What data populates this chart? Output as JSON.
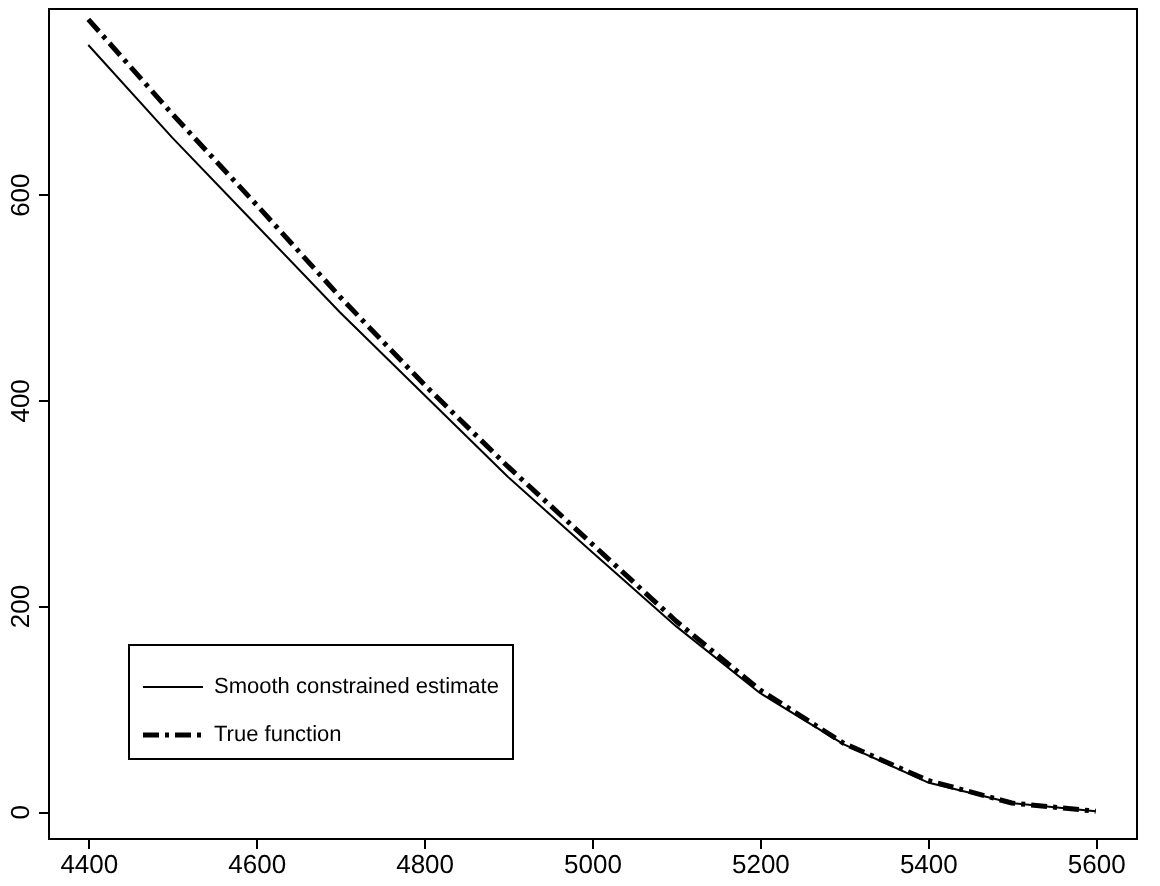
{
  "chart_data": {
    "type": "line",
    "xlim": [
      4352,
      5648
    ],
    "ylim": [
      -26,
      781
    ],
    "xticks": [
      4400,
      4600,
      4800,
      5000,
      5200,
      5400,
      5600
    ],
    "yticks": [
      0,
      200,
      400,
      600
    ],
    "grid": false,
    "legend": "bottom left",
    "marker": "none",
    "series": [
      {
        "name": "Smooth constrained estimate",
        "color": "#000000",
        "line_style": "solid",
        "x": [
          4400,
          4500,
          4600,
          4700,
          4800,
          4900,
          5000,
          5100,
          5200,
          5300,
          5400,
          5500,
          5600
        ],
        "values": [
          745,
          655,
          570,
          485,
          405,
          325,
          252,
          180,
          115,
          65,
          28,
          8,
          0
        ]
      },
      {
        "name": "True function",
        "color": "#000000",
        "line_style": "dashed",
        "x": [
          4400,
          4500,
          4600,
          4700,
          4800,
          4900,
          5000,
          5100,
          5200,
          5300,
          5400,
          5500,
          5600
        ],
        "values": [
          770,
          678,
          590,
          500,
          415,
          335,
          260,
          185,
          118,
          66,
          30,
          8,
          0
        ]
      }
    ]
  }
}
